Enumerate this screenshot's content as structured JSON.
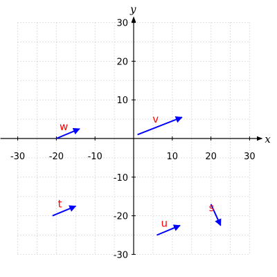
{
  "chart_data": {
    "type": "vector-field",
    "title": "",
    "xlabel": "x",
    "ylabel": "y",
    "xlim": [
      -30,
      30
    ],
    "ylim": [
      -30,
      30
    ],
    "xticks": [
      -30,
      -20,
      -10,
      10,
      20,
      30
    ],
    "yticks": [
      -30,
      -20,
      -10,
      10,
      20,
      30
    ],
    "xtick_labels": [
      "-30",
      "-20",
      "-10",
      "10",
      "20",
      "30"
    ],
    "ytick_labels": [
      "-30",
      "-20",
      "-10",
      "10",
      "20",
      "30"
    ],
    "grid": true,
    "vectors": [
      {
        "label": "v",
        "start": [
          1,
          1
        ],
        "end": [
          12.5,
          5.5
        ]
      },
      {
        "label": "w",
        "start": [
          -20,
          0
        ],
        "end": [
          -14,
          2.5
        ]
      },
      {
        "label": "t",
        "start": [
          -21,
          -20
        ],
        "end": [
          -15,
          -17.5
        ]
      },
      {
        "label": "u",
        "start": [
          6,
          -25
        ],
        "end": [
          12,
          -22.5
        ]
      },
      {
        "label": "s",
        "start": [
          20,
          -17
        ],
        "end": [
          22.5,
          -22.5
        ]
      }
    ],
    "colors": {
      "vector": "#0000ff",
      "label": "#ff0000",
      "grid": "#bfbfbf",
      "axis": "#000000"
    }
  }
}
